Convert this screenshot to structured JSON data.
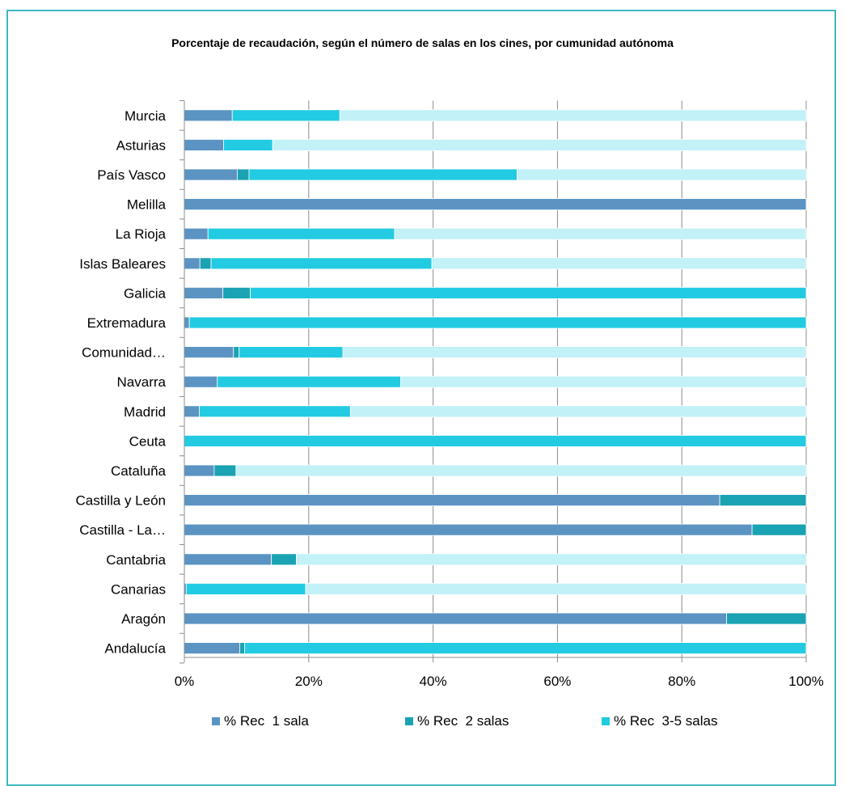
{
  "chart_data": {
    "type": "bar",
    "orientation": "horizontal",
    "stacked": "percent",
    "title": "Porcentaje de recaudación, según el número de salas en los cines, por cumunidad autónoma",
    "xlabel": "",
    "ylabel": "",
    "xlim": [
      0,
      100
    ],
    "x_ticks": [
      "0%",
      "20%",
      "40%",
      "60%",
      "80%",
      "100%"
    ],
    "grid": true,
    "legend_position": "bottom",
    "categories": [
      "Murcia",
      "Asturias",
      "País Vasco",
      "Melilla",
      "La Rioja",
      "Islas Baleares",
      "Galicia",
      "Extremadura",
      "Comunidad…",
      "Navarra",
      "Madrid",
      "Ceuta",
      "Cataluña",
      "Castilla y León",
      "Castilla - La…",
      "Cantabria",
      "Canarias",
      "Aragón",
      "Andalucía"
    ],
    "series": [
      {
        "name": "% Rec  1 sala",
        "color": "#5b94c3",
        "values": [
          7.7,
          6.3,
          8.5,
          100,
          3.8,
          2.5,
          6.2,
          0.8,
          7.9,
          5.3,
          2.4,
          0,
          4.8,
          86.1,
          91.3,
          14.0,
          0.3,
          87.2,
          8.9
        ]
      },
      {
        "name": "% Rec  2 salas",
        "color": "#1aa3b3",
        "values": [
          0,
          0,
          1.9,
          0,
          0,
          1.8,
          4.4,
          0,
          0.9,
          0,
          0,
          0,
          3.5,
          13.9,
          8.7,
          4.0,
          0,
          12.8,
          0.8
        ]
      },
      {
        "name": "% Rec  3-5 salas",
        "color": "#22cbe2",
        "values": [
          17.3,
          7.9,
          43.1,
          0,
          30.0,
          35.5,
          89.4,
          99.2,
          16.7,
          29.5,
          24.3,
          100,
          0,
          0,
          0,
          0,
          19.2,
          0,
          90.3
        ]
      },
      {
        "name": "",
        "color": "#c2f1f8",
        "values": [
          75.0,
          85.8,
          46.5,
          0,
          66.2,
          60.2,
          0,
          0,
          74.5,
          65.2,
          73.3,
          0,
          91.7,
          0,
          0,
          82.0,
          80.5,
          0,
          0
        ]
      }
    ]
  }
}
